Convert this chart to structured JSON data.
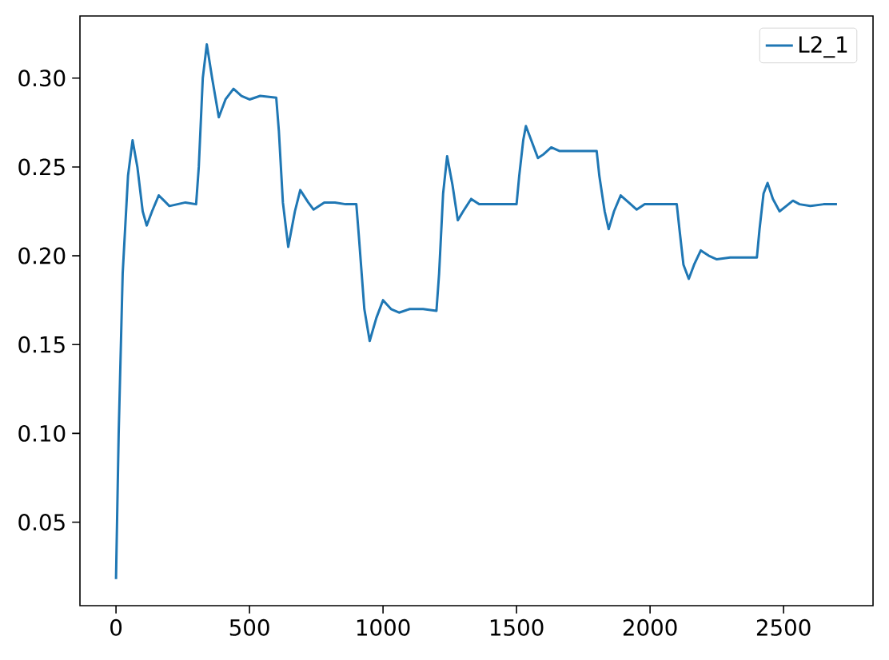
{
  "chart_data": {
    "type": "line",
    "x": [
      0,
      10,
      25,
      45,
      62,
      80,
      100,
      115,
      135,
      160,
      180,
      200,
      230,
      260,
      300,
      310,
      325,
      340,
      360,
      385,
      410,
      440,
      470,
      500,
      540,
      600,
      610,
      625,
      645,
      670,
      690,
      720,
      740,
      780,
      820,
      860,
      900,
      910,
      930,
      950,
      975,
      1000,
      1030,
      1060,
      1100,
      1150,
      1200,
      1210,
      1225,
      1240,
      1260,
      1280,
      1300,
      1330,
      1360,
      1400,
      1450,
      1500,
      1510,
      1525,
      1535,
      1555,
      1580,
      1600,
      1630,
      1660,
      1700,
      1750,
      1800,
      1810,
      1830,
      1845,
      1865,
      1890,
      1920,
      1950,
      1980,
      2050,
      2100,
      2110,
      2125,
      2145,
      2165,
      2190,
      2220,
      2250,
      2300,
      2350,
      2400,
      2410,
      2425,
      2440,
      2460,
      2485,
      2510,
      2535,
      2560,
      2600,
      2650,
      2700
    ],
    "series": [
      {
        "name": "L2_1",
        "color": "#1f77b4",
        "values": [
          0.018,
          0.1,
          0.19,
          0.245,
          0.265,
          0.25,
          0.225,
          0.217,
          0.225,
          0.234,
          0.231,
          0.228,
          0.229,
          0.23,
          0.229,
          0.25,
          0.3,
          0.319,
          0.3,
          0.278,
          0.288,
          0.294,
          0.29,
          0.288,
          0.29,
          0.289,
          0.27,
          0.23,
          0.205,
          0.225,
          0.237,
          0.23,
          0.226,
          0.23,
          0.23,
          0.229,
          0.229,
          0.21,
          0.17,
          0.152,
          0.165,
          0.175,
          0.17,
          0.168,
          0.17,
          0.17,
          0.169,
          0.19,
          0.235,
          0.256,
          0.24,
          0.22,
          0.225,
          0.232,
          0.229,
          0.229,
          0.229,
          0.229,
          0.245,
          0.265,
          0.273,
          0.265,
          0.255,
          0.257,
          0.261,
          0.259,
          0.259,
          0.259,
          0.259,
          0.245,
          0.225,
          0.215,
          0.225,
          0.234,
          0.23,
          0.226,
          0.229,
          0.229,
          0.229,
          0.215,
          0.195,
          0.187,
          0.195,
          0.203,
          0.2,
          0.198,
          0.199,
          0.199,
          0.199,
          0.215,
          0.235,
          0.241,
          0.232,
          0.225,
          0.228,
          0.231,
          0.229,
          0.228,
          0.229,
          0.229
        ]
      }
    ],
    "xlim": [
      -135,
      2835
    ],
    "ylim": [
      0.003,
      0.335
    ],
    "xticks": [
      0,
      500,
      1000,
      1500,
      2000,
      2500
    ],
    "yticks": [
      {
        "value": 0.05,
        "label": "0.05"
      },
      {
        "value": 0.1,
        "label": "0.10"
      },
      {
        "value": 0.15,
        "label": "0.15"
      },
      {
        "value": 0.2,
        "label": "0.20"
      },
      {
        "value": 0.25,
        "label": "0.25"
      },
      {
        "value": 0.3,
        "label": "0.30"
      }
    ],
    "legend": "top right",
    "grid": false
  }
}
